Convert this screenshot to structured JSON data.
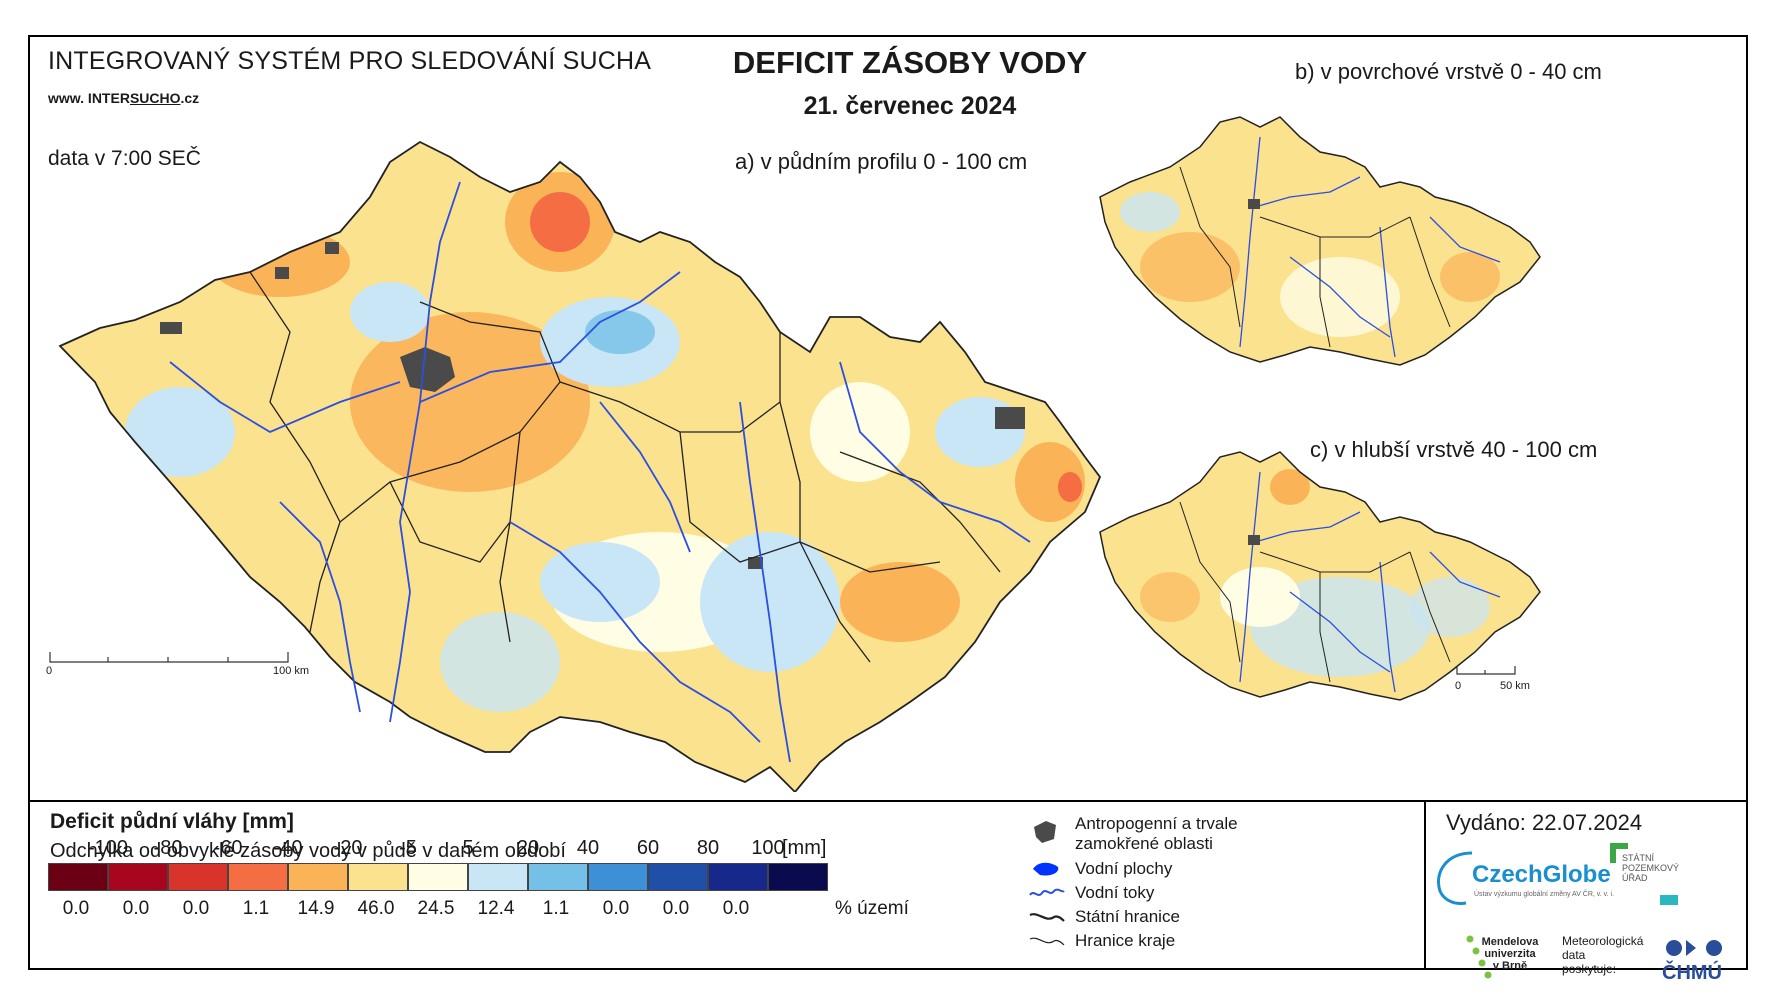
{
  "header": {
    "system_title": "INTEGROVANÝ SYSTÉM PRO SLEDOVÁNÍ SUCHA",
    "www_prefix": "www.",
    "www_site1": " INTER",
    "www_site2": "SUCHO",
    "www_suffix": ".cz",
    "data_time": "data v 7:00 SEČ",
    "main_title": "DEFICIT ZÁSOBY VODY",
    "date": "21. červenec 2024"
  },
  "maps": {
    "a_label": "a) v půdním profilu 0 - 100 cm",
    "b_label": "b) v povrchové vrstvě 0 - 40 cm",
    "c_label": "c) v hlubší vrstvě 40 - 100 cm",
    "scale_main_zero": "0",
    "scale_main_end": "100 km",
    "scale_small_zero": "0",
    "scale_small_end": "50 km"
  },
  "legend": {
    "title": "Deficit půdní vláhy  [mm]",
    "subtitle": "Odchylka od obvyklé zásoby vody v půdě v daném období",
    "unit": "[mm]",
    "pct_label": "% území",
    "ticks": [
      "-100",
      "-80",
      "-60",
      "-40",
      "-20",
      "-5",
      "5",
      "20",
      "40",
      "60",
      "80",
      "100"
    ],
    "classes": [
      {
        "color": "#6b0014",
        "pct": "0.0"
      },
      {
        "color": "#a8061e",
        "pct": "0.0"
      },
      {
        "color": "#d9342b",
        "pct": "0.0"
      },
      {
        "color": "#f46d43",
        "pct": "1.1"
      },
      {
        "color": "#fbb358",
        "pct": "14.9"
      },
      {
        "color": "#fbe28f",
        "pct": "46.0"
      },
      {
        "color": "#fffde4",
        "pct": "24.5"
      },
      {
        "color": "#c8e6f5",
        "pct": "12.4"
      },
      {
        "color": "#74c0e6",
        "pct": "1.1"
      },
      {
        "color": "#3d8fd6",
        "pct": "0.0"
      },
      {
        "color": "#1f4fa8",
        "pct": "0.0"
      },
      {
        "color": "#16288a",
        "pct": "0.0"
      },
      {
        "color": "#0a0a4e",
        "pct": ""
      }
    ]
  },
  "symbols": {
    "urban": "Antropogenní a trvale\nzamokřené oblasti",
    "urban_line1": "Antropogenní a trvale",
    "urban_line2": "zamokřené oblasti",
    "water_bodies": "Vodní plochy",
    "rivers": "Vodní toky",
    "state_border": "Státní hranice",
    "region_border": "Hranice kraje"
  },
  "footer": {
    "issued": "Vydáno: 22.07.2024",
    "czechglobe": "CzechGlobe",
    "czechglobe_sub": "Ústav výzkumu globální změny AV ČR, v. v. i.",
    "spu_line1": "STÁTNÍ",
    "spu_line2": "POZEMKOVÝ",
    "spu_line3": "ÚŘAD",
    "mendel_line1": "Mendelova",
    "mendel_line2": "univerzita",
    "mendel_line3": "v Brně",
    "meteo_line1": "Meteorologická",
    "meteo_line2": "data",
    "meteo_line3": "poskytuje:",
    "chmu": "ČHMÚ"
  },
  "colors": {
    "river": "#2b4fe0",
    "urban": "#4a4a4a",
    "border": "#222222"
  }
}
